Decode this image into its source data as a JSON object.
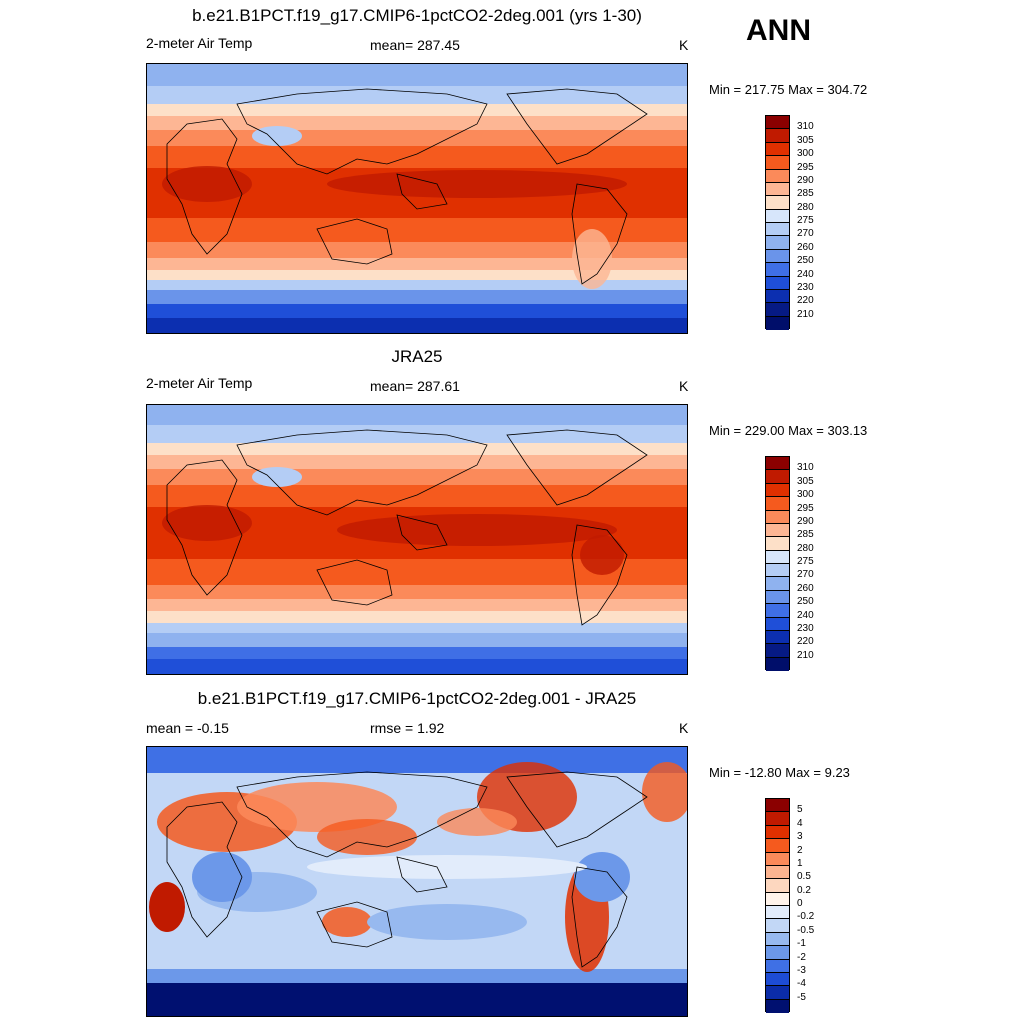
{
  "season": "ANN",
  "panels": [
    {
      "title": "b.e21.B1PCT.f19_g17.CMIP6-1pctCO2-2deg.001 (yrs 1-30)",
      "variable": "2-meter Air Temp",
      "stat_center": "mean= 287.45",
      "units": "K",
      "minmax": "Min = 217.75 Max = 304.72",
      "colorbar_labels": [
        "310",
        "305",
        "300",
        "295",
        "290",
        "285",
        "280",
        "275",
        "270",
        "260",
        "250",
        "240",
        "230",
        "220",
        "210"
      ]
    },
    {
      "title": "JRA25",
      "variable": "2-meter Air Temp",
      "stat_center": "mean= 287.61",
      "units": "K",
      "minmax": "Min = 229.00 Max = 303.13",
      "colorbar_labels": [
        "310",
        "305",
        "300",
        "295",
        "290",
        "285",
        "280",
        "275",
        "270",
        "260",
        "250",
        "240",
        "230",
        "220",
        "210"
      ]
    },
    {
      "title": "b.e21.B1PCT.f19_g17.CMIP6-1pctCO2-2deg.001 - JRA25",
      "variable": "mean =  -0.15",
      "stat_center": "rmse =   1.92",
      "units": "K",
      "minmax": "Min = -12.80 Max =   9.23",
      "colorbar_labels": [
        "5",
        "4",
        "3",
        "2",
        "1",
        "0.5",
        "0.2",
        "0",
        "-0.2",
        "-0.5",
        "-1",
        "-2",
        "-3",
        "-4",
        "-5"
      ]
    }
  ],
  "colors": {
    "abs_scale": [
      "#8b0000",
      "#c01a00",
      "#e03000",
      "#f55a1e",
      "#fb8a5a",
      "#fdb694",
      "#fde0c8",
      "#d7e6fb",
      "#b4cdf5",
      "#8fb2ef",
      "#6a94ea",
      "#3f6fe6",
      "#1f4fd8",
      "#0c2fb0",
      "#061a84",
      "#000e6a"
    ],
    "diff_scale": [
      "#8b0000",
      "#c01a00",
      "#e03000",
      "#f55a1e",
      "#fb8a5a",
      "#fcb490",
      "#fdd7bf",
      "#fff3ea",
      "#e2ecfb",
      "#c2d7f6",
      "#97b9ef",
      "#6c98e9",
      "#3f70e5",
      "#1d4cd5",
      "#0b2ca8",
      "#001070"
    ]
  }
}
